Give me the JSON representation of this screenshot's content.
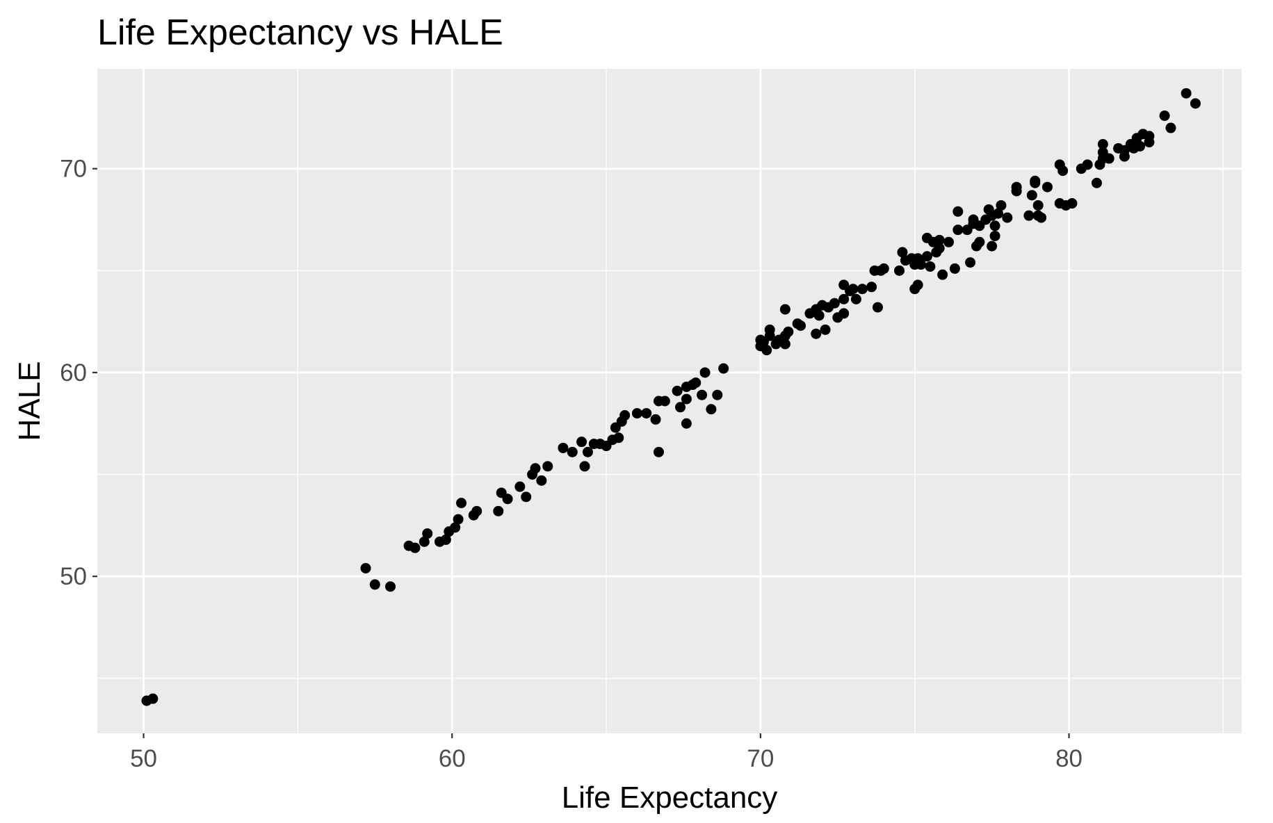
{
  "chart_data": {
    "type": "scatter",
    "title": "Life Expectancy vs HALE",
    "xlabel": "Life Expectancy",
    "ylabel": "HALE",
    "xlim": [
      48.5,
      85.6
    ],
    "ylim": [
      42.3,
      74.9
    ],
    "x_ticks": [
      50,
      60,
      70,
      80
    ],
    "y_ticks": [
      50,
      60,
      70
    ],
    "x_tick_labels": [
      "50",
      "60",
      "70",
      "80"
    ],
    "y_tick_labels": [
      "50",
      "60",
      "70"
    ],
    "x_minor_ticks": [
      55,
      65,
      75,
      85
    ],
    "y_minor_ticks": [
      45,
      55,
      65
    ],
    "grid": true,
    "legend": "none",
    "colors": {
      "panel_background": "#ebebeb",
      "grid_line": "#ffffff",
      "point": "#000000",
      "tick_label": "#4d4d4d",
      "tick_mark": "#333333"
    },
    "points": [
      {
        "x": 50.1,
        "y": 43.9
      },
      {
        "x": 50.3,
        "y": 44.0
      },
      {
        "x": 57.2,
        "y": 50.4
      },
      {
        "x": 57.5,
        "y": 49.6
      },
      {
        "x": 58.0,
        "y": 49.5
      },
      {
        "x": 58.6,
        "y": 51.5
      },
      {
        "x": 58.8,
        "y": 51.4
      },
      {
        "x": 59.1,
        "y": 51.7
      },
      {
        "x": 59.2,
        "y": 52.1
      },
      {
        "x": 59.6,
        "y": 51.7
      },
      {
        "x": 59.8,
        "y": 51.8
      },
      {
        "x": 59.9,
        "y": 52.2
      },
      {
        "x": 60.1,
        "y": 52.4
      },
      {
        "x": 60.2,
        "y": 52.8
      },
      {
        "x": 60.3,
        "y": 53.6
      },
      {
        "x": 60.7,
        "y": 53.0
      },
      {
        "x": 60.8,
        "y": 53.2
      },
      {
        "x": 61.5,
        "y": 53.2
      },
      {
        "x": 61.6,
        "y": 54.1
      },
      {
        "x": 61.8,
        "y": 53.8
      },
      {
        "x": 62.2,
        "y": 54.4
      },
      {
        "x": 62.4,
        "y": 53.9
      },
      {
        "x": 62.6,
        "y": 55.0
      },
      {
        "x": 62.7,
        "y": 55.3
      },
      {
        "x": 62.9,
        "y": 54.7
      },
      {
        "x": 63.1,
        "y": 55.4
      },
      {
        "x": 63.6,
        "y": 56.3
      },
      {
        "x": 63.9,
        "y": 56.1
      },
      {
        "x": 64.2,
        "y": 56.6
      },
      {
        "x": 64.3,
        "y": 55.4
      },
      {
        "x": 64.4,
        "y": 56.1
      },
      {
        "x": 64.6,
        "y": 56.5
      },
      {
        "x": 64.8,
        "y": 56.5
      },
      {
        "x": 65.0,
        "y": 56.4
      },
      {
        "x": 65.2,
        "y": 56.7
      },
      {
        "x": 65.3,
        "y": 57.3
      },
      {
        "x": 65.4,
        "y": 56.8
      },
      {
        "x": 65.5,
        "y": 57.6
      },
      {
        "x": 65.6,
        "y": 57.9
      },
      {
        "x": 66.0,
        "y": 58.0
      },
      {
        "x": 66.3,
        "y": 58.0
      },
      {
        "x": 66.6,
        "y": 57.7
      },
      {
        "x": 66.7,
        "y": 58.6
      },
      {
        "x": 66.7,
        "y": 56.1
      },
      {
        "x": 66.9,
        "y": 58.6
      },
      {
        "x": 67.3,
        "y": 59.1
      },
      {
        "x": 67.4,
        "y": 58.3
      },
      {
        "x": 67.6,
        "y": 59.3
      },
      {
        "x": 67.6,
        "y": 58.7
      },
      {
        "x": 67.6,
        "y": 57.5
      },
      {
        "x": 67.8,
        "y": 59.4
      },
      {
        "x": 67.9,
        "y": 59.5
      },
      {
        "x": 68.1,
        "y": 58.9
      },
      {
        "x": 68.2,
        "y": 60.0
      },
      {
        "x": 68.4,
        "y": 58.2
      },
      {
        "x": 68.6,
        "y": 58.9
      },
      {
        "x": 68.8,
        "y": 60.2
      },
      {
        "x": 70.0,
        "y": 61.3
      },
      {
        "x": 70.0,
        "y": 61.6
      },
      {
        "x": 70.1,
        "y": 61.5
      },
      {
        "x": 70.2,
        "y": 61.1
      },
      {
        "x": 70.3,
        "y": 61.8
      },
      {
        "x": 70.3,
        "y": 62.1
      },
      {
        "x": 70.5,
        "y": 61.4
      },
      {
        "x": 70.6,
        "y": 61.6
      },
      {
        "x": 70.8,
        "y": 61.8
      },
      {
        "x": 70.8,
        "y": 61.4
      },
      {
        "x": 70.9,
        "y": 62.0
      },
      {
        "x": 70.8,
        "y": 63.1
      },
      {
        "x": 71.2,
        "y": 62.4
      },
      {
        "x": 71.3,
        "y": 62.3
      },
      {
        "x": 71.6,
        "y": 62.9
      },
      {
        "x": 71.8,
        "y": 63.1
      },
      {
        "x": 71.8,
        "y": 61.9
      },
      {
        "x": 71.9,
        "y": 62.8
      },
      {
        "x": 72.0,
        "y": 63.3
      },
      {
        "x": 72.1,
        "y": 62.1
      },
      {
        "x": 72.2,
        "y": 63.2
      },
      {
        "x": 72.4,
        "y": 63.4
      },
      {
        "x": 72.5,
        "y": 62.7
      },
      {
        "x": 72.7,
        "y": 62.9
      },
      {
        "x": 72.7,
        "y": 63.6
      },
      {
        "x": 72.7,
        "y": 64.3
      },
      {
        "x": 72.9,
        "y": 64.0
      },
      {
        "x": 73.0,
        "y": 64.1
      },
      {
        "x": 73.1,
        "y": 63.6
      },
      {
        "x": 73.3,
        "y": 64.1
      },
      {
        "x": 73.6,
        "y": 64.2
      },
      {
        "x": 73.7,
        "y": 65.0
      },
      {
        "x": 73.8,
        "y": 63.2
      },
      {
        "x": 73.9,
        "y": 65.0
      },
      {
        "x": 74.0,
        "y": 65.1
      },
      {
        "x": 74.5,
        "y": 65.0
      },
      {
        "x": 74.6,
        "y": 65.9
      },
      {
        "x": 74.7,
        "y": 65.5
      },
      {
        "x": 74.9,
        "y": 65.6
      },
      {
        "x": 75.0,
        "y": 64.1
      },
      {
        "x": 75.0,
        "y": 65.3
      },
      {
        "x": 75.1,
        "y": 64.3
      },
      {
        "x": 75.1,
        "y": 65.6
      },
      {
        "x": 75.2,
        "y": 65.3
      },
      {
        "x": 75.4,
        "y": 65.7
      },
      {
        "x": 75.4,
        "y": 66.6
      },
      {
        "x": 75.5,
        "y": 65.2
      },
      {
        "x": 75.6,
        "y": 66.4
      },
      {
        "x": 75.7,
        "y": 65.9
      },
      {
        "x": 75.8,
        "y": 66.5
      },
      {
        "x": 75.8,
        "y": 66.1
      },
      {
        "x": 75.9,
        "y": 64.8
      },
      {
        "x": 76.1,
        "y": 66.4
      },
      {
        "x": 76.3,
        "y": 65.1
      },
      {
        "x": 76.4,
        "y": 67.9
      },
      {
        "x": 76.4,
        "y": 67.0
      },
      {
        "x": 76.7,
        "y": 67.0
      },
      {
        "x": 76.8,
        "y": 65.4
      },
      {
        "x": 76.9,
        "y": 67.3
      },
      {
        "x": 76.9,
        "y": 67.5
      },
      {
        "x": 77.0,
        "y": 66.2
      },
      {
        "x": 77.1,
        "y": 67.2
      },
      {
        "x": 77.1,
        "y": 66.4
      },
      {
        "x": 77.3,
        "y": 67.5
      },
      {
        "x": 77.4,
        "y": 68.0
      },
      {
        "x": 77.5,
        "y": 67.7
      },
      {
        "x": 77.5,
        "y": 66.2
      },
      {
        "x": 77.6,
        "y": 67.2
      },
      {
        "x": 77.6,
        "y": 66.7
      },
      {
        "x": 77.7,
        "y": 67.8
      },
      {
        "x": 77.8,
        "y": 68.2
      },
      {
        "x": 78.0,
        "y": 67.6
      },
      {
        "x": 78.3,
        "y": 68.9
      },
      {
        "x": 78.3,
        "y": 69.1
      },
      {
        "x": 78.7,
        "y": 67.7
      },
      {
        "x": 78.8,
        "y": 68.7
      },
      {
        "x": 78.9,
        "y": 69.3
      },
      {
        "x": 78.9,
        "y": 69.4
      },
      {
        "x": 79.0,
        "y": 67.7
      },
      {
        "x": 79.0,
        "y": 68.2
      },
      {
        "x": 79.1,
        "y": 67.6
      },
      {
        "x": 79.3,
        "y": 69.1
      },
      {
        "x": 79.7,
        "y": 70.2
      },
      {
        "x": 79.7,
        "y": 68.3
      },
      {
        "x": 79.8,
        "y": 69.9
      },
      {
        "x": 79.9,
        "y": 68.2
      },
      {
        "x": 80.1,
        "y": 68.3
      },
      {
        "x": 80.4,
        "y": 70.0
      },
      {
        "x": 80.6,
        "y": 70.2
      },
      {
        "x": 80.9,
        "y": 69.3
      },
      {
        "x": 81.0,
        "y": 70.2
      },
      {
        "x": 81.1,
        "y": 70.5
      },
      {
        "x": 81.1,
        "y": 70.8
      },
      {
        "x": 81.1,
        "y": 71.2
      },
      {
        "x": 81.3,
        "y": 70.5
      },
      {
        "x": 81.6,
        "y": 71.0
      },
      {
        "x": 81.8,
        "y": 70.9
      },
      {
        "x": 81.8,
        "y": 70.6
      },
      {
        "x": 82.0,
        "y": 71.2
      },
      {
        "x": 82.1,
        "y": 71.0
      },
      {
        "x": 82.2,
        "y": 71.5
      },
      {
        "x": 82.3,
        "y": 71.1
      },
      {
        "x": 82.4,
        "y": 71.7
      },
      {
        "x": 82.6,
        "y": 71.3
      },
      {
        "x": 82.6,
        "y": 71.6
      },
      {
        "x": 83.1,
        "y": 72.6
      },
      {
        "x": 83.3,
        "y": 72.0
      },
      {
        "x": 83.8,
        "y": 73.7
      },
      {
        "x": 84.1,
        "y": 73.2
      }
    ]
  }
}
